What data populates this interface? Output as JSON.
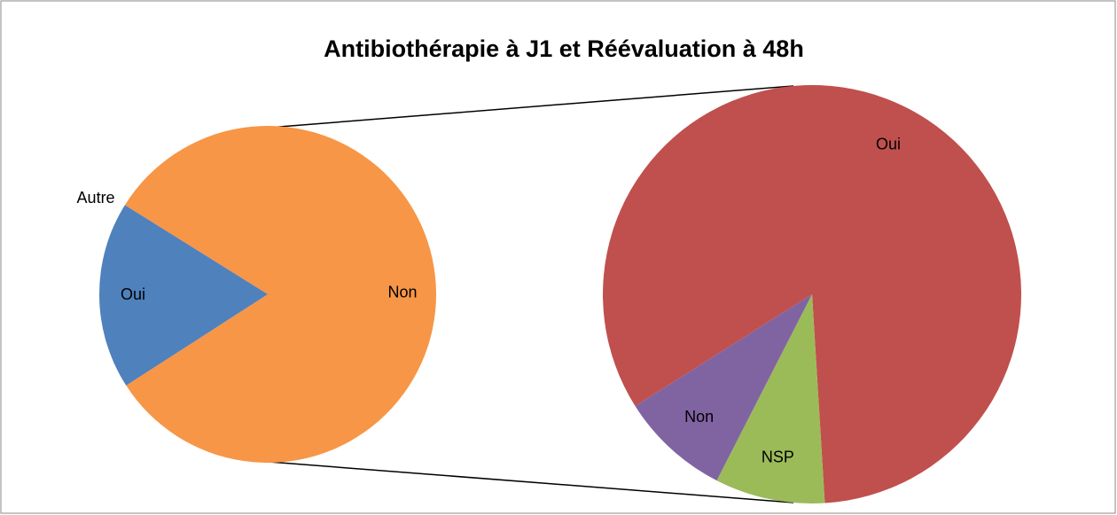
{
  "chart_data": {
    "type": "pie",
    "title": "Antibiothérapie à J1 et Réévaluation à 48h",
    "pies": [
      {
        "categories": [
          "Non",
          "Oui",
          "Autre"
        ],
        "values": [
          82,
          18,
          0
        ],
        "colors": [
          "#f79646",
          "#4f81bd",
          "#9bbb59"
        ]
      },
      {
        "categories": [
          "Oui",
          "NSP",
          "Non"
        ],
        "values": [
          83,
          8.5,
          8.5
        ],
        "colors": [
          "#c0504d",
          "#9bbb59",
          "#8064a2"
        ]
      }
    ]
  }
}
